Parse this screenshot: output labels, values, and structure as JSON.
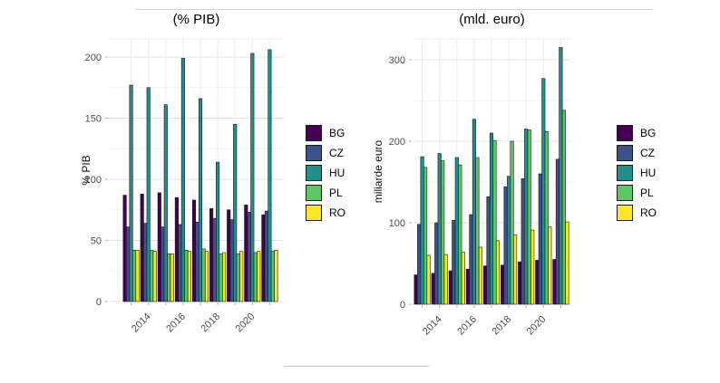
{
  "figure": {
    "type": "grouped-bar-charts",
    "panel_titles": [
      "(% PIB)",
      "(mld. euro)"
    ]
  },
  "legend": {
    "items": [
      {
        "label": "BG",
        "color": "#440154"
      },
      {
        "label": "CZ",
        "color": "#3B528B"
      },
      {
        "label": "HU",
        "color": "#21908C"
      },
      {
        "label": "PL",
        "color": "#5DC863"
      },
      {
        "label": "RO",
        "color": "#FDE725"
      }
    ]
  },
  "chart_data": [
    {
      "type": "bar",
      "title": "(% PIB)",
      "ylabel": "% PIB",
      "xlabel": "",
      "categories": [
        "2013",
        "2014",
        "2015",
        "2016",
        "2017",
        "2018",
        "2019",
        "2020",
        "2021"
      ],
      "xtick_labels_visible": [
        "2014",
        "2016",
        "2018",
        "2020"
      ],
      "yticks": [
        0,
        50,
        100,
        150,
        200
      ],
      "ylim": [
        0,
        215
      ],
      "grid": true,
      "legend_position": "right",
      "series": [
        {
          "name": "BG",
          "color": "#440154",
          "values": [
            87,
            88,
            89,
            85,
            83,
            76,
            75,
            79,
            71
          ]
        },
        {
          "name": "CZ",
          "color": "#3B528B",
          "values": [
            61,
            64,
            61,
            63,
            65,
            68,
            67,
            73,
            74
          ]
        },
        {
          "name": "HU",
          "color": "#21908C",
          "values": [
            177,
            175,
            161,
            199,
            166,
            114,
            145,
            203,
            206
          ]
        },
        {
          "name": "PL",
          "color": "#5DC863",
          "values": [
            42,
            42,
            39,
            42,
            43,
            39,
            39,
            40,
            41
          ]
        },
        {
          "name": "RO",
          "color": "#FDE725",
          "values": [
            42,
            41,
            39,
            41,
            41,
            40,
            41,
            41,
            42
          ]
        }
      ]
    },
    {
      "type": "bar",
      "title": "(mld. euro)",
      "ylabel": "miliarde euro",
      "xlabel": "",
      "categories": [
        "2013",
        "2014",
        "2015",
        "2016",
        "2017",
        "2018",
        "2019",
        "2020",
        "2021"
      ],
      "xtick_labels_visible": [
        "2014",
        "2016",
        "2018",
        "2020"
      ],
      "yticks": [
        0,
        100,
        200,
        300
      ],
      "ylim": [
        0,
        330
      ],
      "grid": true,
      "legend_position": "right",
      "series": [
        {
          "name": "BG",
          "color": "#440154",
          "values": [
            36,
            38,
            41,
            43,
            47,
            48,
            52,
            54,
            55
          ]
        },
        {
          "name": "CZ",
          "color": "#3B528B",
          "values": [
            98,
            100,
            103,
            110,
            132,
            144,
            154,
            160,
            178
          ]
        },
        {
          "name": "HU",
          "color": "#21908C",
          "values": [
            181,
            185,
            180,
            227,
            210,
            157,
            215,
            277,
            315
          ]
        },
        {
          "name": "PL",
          "color": "#5DC863",
          "values": [
            168,
            176,
            171,
            180,
            201,
            200,
            214,
            212,
            238
          ]
        },
        {
          "name": "RO",
          "color": "#FDE725",
          "values": [
            60,
            61,
            64,
            70,
            78,
            85,
            91,
            95,
            101
          ]
        }
      ]
    }
  ]
}
